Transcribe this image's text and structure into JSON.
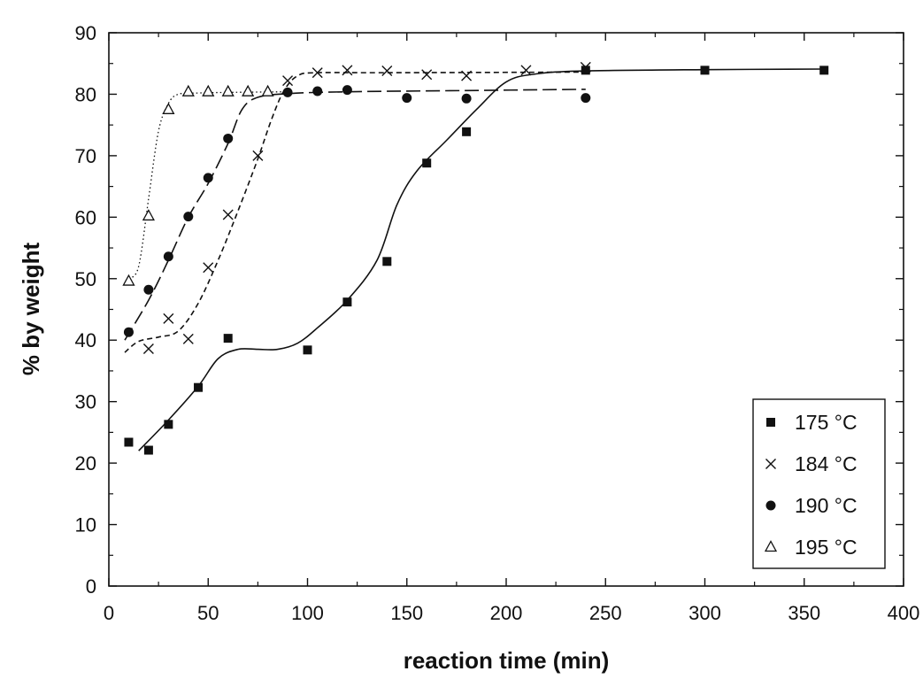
{
  "chart_data": {
    "type": "scatter",
    "title": "",
    "xlabel": "reaction time (min)",
    "ylabel": "% by weight",
    "xlim": [
      0,
      400
    ],
    "ylim": [
      0,
      90
    ],
    "x_ticks": [
      0,
      50,
      100,
      150,
      200,
      250,
      300,
      350,
      400
    ],
    "y_ticks": [
      0,
      10,
      20,
      30,
      40,
      50,
      60,
      70,
      80,
      90
    ],
    "grid": false,
    "legend_position": "bottom-right",
    "series": [
      {
        "name": "175 °C",
        "marker": "square-filled",
        "line_style": "solid",
        "points": [
          [
            10,
            23.4
          ],
          [
            20,
            22.1
          ],
          [
            30,
            26.3
          ],
          [
            45,
            32.3
          ],
          [
            60,
            40.3
          ],
          [
            100,
            38.4
          ],
          [
            120,
            46.2
          ],
          [
            140,
            52.8
          ],
          [
            160,
            68.8
          ],
          [
            180,
            73.9
          ],
          [
            240,
            83.9
          ],
          [
            300,
            83.9
          ],
          [
            360,
            83.9
          ]
        ],
        "fit": [
          [
            15,
            22
          ],
          [
            30,
            27
          ],
          [
            45,
            32.5
          ],
          [
            55,
            37
          ],
          [
            65,
            38.5
          ],
          [
            75,
            38.5
          ],
          [
            85,
            38.5
          ],
          [
            95,
            39.5
          ],
          [
            105,
            42
          ],
          [
            120,
            46.5
          ],
          [
            135,
            53
          ],
          [
            145,
            62
          ],
          [
            155,
            67.5
          ],
          [
            170,
            72.5
          ],
          [
            185,
            77.5
          ],
          [
            200,
            82
          ],
          [
            215,
            83.3
          ],
          [
            240,
            83.8
          ],
          [
            300,
            84
          ],
          [
            360,
            84.1
          ]
        ]
      },
      {
        "name": "184 °C",
        "marker": "x",
        "line_style": "short-dash",
        "points": [
          [
            20,
            38.6
          ],
          [
            30,
            43.5
          ],
          [
            40,
            40.2
          ],
          [
            50,
            51.8
          ],
          [
            60,
            60.4
          ],
          [
            75,
            70.0
          ],
          [
            90,
            82.2
          ],
          [
            105,
            83.5
          ],
          [
            120,
            83.9
          ],
          [
            140,
            83.8
          ],
          [
            160,
            83.2
          ],
          [
            180,
            83.0
          ],
          [
            210,
            83.9
          ],
          [
            240,
            84.4
          ]
        ],
        "fit": [
          [
            8,
            38
          ],
          [
            15,
            39.8
          ],
          [
            25,
            40.5
          ],
          [
            35,
            41.5
          ],
          [
            45,
            46
          ],
          [
            55,
            53
          ],
          [
            65,
            61
          ],
          [
            75,
            69.5
          ],
          [
            82,
            76
          ],
          [
            88,
            80.5
          ],
          [
            95,
            83
          ],
          [
            105,
            83.5
          ],
          [
            140,
            83.5
          ],
          [
            240,
            83.6
          ]
        ]
      },
      {
        "name": "190 °C",
        "marker": "circle-filled",
        "line_style": "long-dash",
        "points": [
          [
            10,
            41.3
          ],
          [
            20,
            48.2
          ],
          [
            30,
            53.6
          ],
          [
            40,
            60.1
          ],
          [
            50,
            66.4
          ],
          [
            60,
            72.8
          ],
          [
            90,
            80.3
          ],
          [
            105,
            80.5
          ],
          [
            120,
            80.7
          ],
          [
            150,
            79.4
          ],
          [
            180,
            79.3
          ],
          [
            240,
            79.4
          ]
        ],
        "fit": [
          [
            8,
            40
          ],
          [
            20,
            46.5
          ],
          [
            30,
            53
          ],
          [
            40,
            60
          ],
          [
            50,
            65.5
          ],
          [
            60,
            72
          ],
          [
            67,
            77.5
          ],
          [
            75,
            79.5
          ],
          [
            90,
            80.1
          ],
          [
            120,
            80.4
          ],
          [
            180,
            80.6
          ],
          [
            240,
            80.8
          ]
        ]
      },
      {
        "name": "195 °C",
        "marker": "triangle-open",
        "line_style": "dotted",
        "points": [
          [
            10,
            49.6
          ],
          [
            20,
            60.2
          ],
          [
            30,
            77.5
          ],
          [
            40,
            80.4
          ],
          [
            50,
            80.4
          ],
          [
            60,
            80.4
          ],
          [
            70,
            80.4
          ],
          [
            80,
            80.4
          ]
        ],
        "fit": [
          [
            10,
            50
          ],
          [
            15,
            52
          ],
          [
            20,
            63
          ],
          [
            25,
            74
          ],
          [
            30,
            78.5
          ],
          [
            35,
            80
          ],
          [
            45,
            80.2
          ],
          [
            60,
            80.3
          ],
          [
            90,
            80.4
          ]
        ]
      }
    ]
  }
}
